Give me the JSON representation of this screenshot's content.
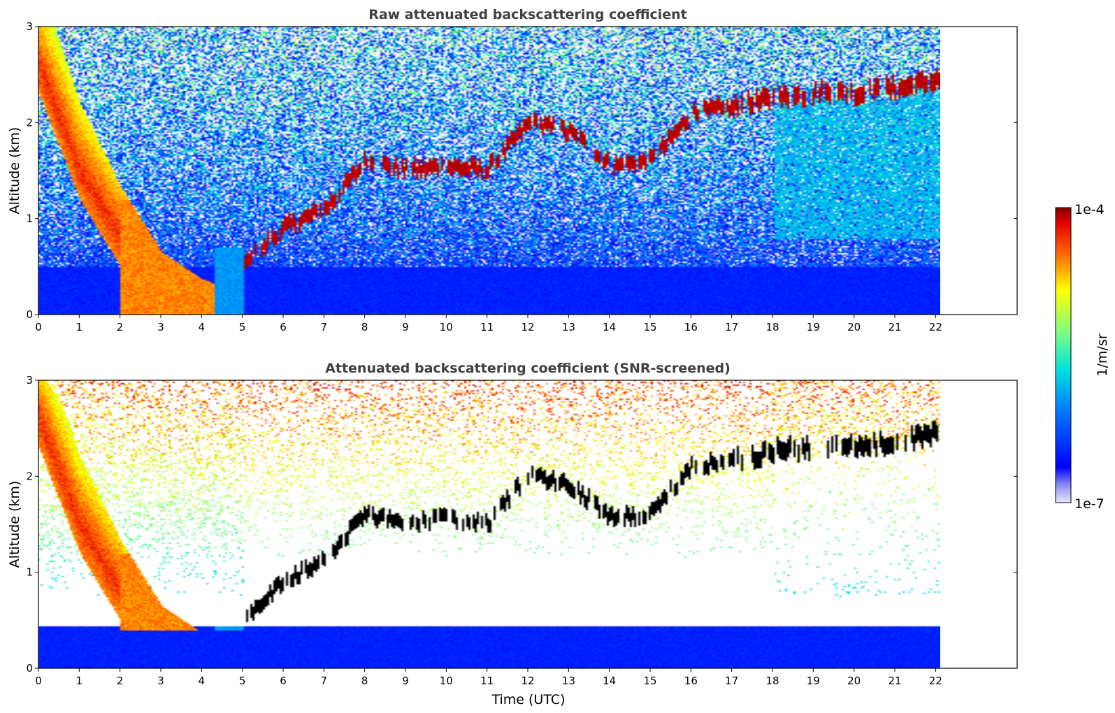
{
  "chart_data": [
    {
      "type": "heatmap",
      "title": "Raw attenuated backscattering coefficient",
      "xlabel": "",
      "ylabel": "Altitude (km)",
      "xlim": [
        0,
        24
      ],
      "ylim": [
        0,
        3
      ],
      "x_ticks": [
        "0",
        "1",
        "2",
        "3",
        "4",
        "5",
        "6",
        "7",
        "8",
        "9",
        "10",
        "11",
        "12",
        "13",
        "14",
        "15",
        "16",
        "17",
        "18",
        "19",
        "20",
        "21",
        "22"
      ],
      "y_ticks": [
        "0",
        "1",
        "2",
        "3"
      ],
      "data_end_time": 22.1,
      "screened": false,
      "layers": [
        {
          "name": "aerosol_plume",
          "points": [
            [
              0,
              2.6
            ],
            [
              1,
              1.5
            ],
            [
              2,
              0.8
            ],
            [
              3,
              0.3
            ],
            [
              4,
              0.2
            ]
          ],
          "intensity": "high"
        },
        {
          "name": "rising_layer",
          "points": [
            [
              5,
              0.5
            ],
            [
              6,
              0.9
            ],
            [
              7,
              1.1
            ],
            [
              8,
              1.6
            ],
            [
              9,
              1.5
            ],
            [
              10,
              1.55
            ],
            [
              11,
              1.5
            ],
            [
              12,
              2.0
            ],
            [
              13,
              1.9
            ],
            [
              14,
              1.55
            ],
            [
              15,
              1.6
            ],
            [
              16,
              2.1
            ],
            [
              17,
              2.15
            ],
            [
              18,
              2.25
            ],
            [
              19,
              2.3
            ],
            [
              20,
              2.3
            ],
            [
              21,
              2.35
            ],
            [
              22.1,
              2.45
            ]
          ],
          "intensity": "saturated"
        }
      ]
    },
    {
      "type": "heatmap",
      "title": "Attenuated backscattering coefficient (SNR-screened)",
      "xlabel": "Time (UTC)",
      "ylabel": "Altitude (km)",
      "xlim": [
        0,
        24
      ],
      "ylim": [
        0,
        3
      ],
      "x_ticks": [
        "0",
        "1",
        "2",
        "3",
        "4",
        "5",
        "6",
        "7",
        "8",
        "9",
        "10",
        "11",
        "12",
        "13",
        "14",
        "15",
        "16",
        "17",
        "18",
        "19",
        "20",
        "21",
        "22"
      ],
      "y_ticks": [
        "0",
        "1",
        "2",
        "3"
      ],
      "data_end_time": 22.1,
      "screened": true
    }
  ],
  "colorbar": {
    "label": "1/m/sr",
    "max_label": "1e-4",
    "min_label": "1e-7",
    "colormap": "jet",
    "scale": "log",
    "range": [
      1e-07,
      0.0001
    ]
  }
}
